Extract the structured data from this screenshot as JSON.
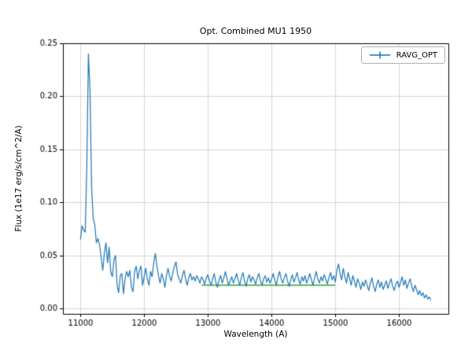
{
  "chart_data": {
    "type": "line",
    "title": "Opt. Combined MU1 1950",
    "xlabel": "Wavelength (A)",
    "ylabel": "Flux (1e17 erg/s/cm^2/A)",
    "xlim": [
      10725,
      16775
    ],
    "ylim": [
      -0.005,
      0.25
    ],
    "grid": true,
    "grid_color": "#cccccc",
    "x_ticks": [
      11000,
      12000,
      13000,
      14000,
      15000,
      16000
    ],
    "x_tick_labels": [
      "11000",
      "12000",
      "13000",
      "14000",
      "15000",
      "16000"
    ],
    "y_ticks": [
      0.0,
      0.05,
      0.1,
      0.15,
      0.2,
      0.25
    ],
    "y_tick_labels": [
      "0.00",
      "0.05",
      "0.10",
      "0.15",
      "0.20",
      "0.25"
    ],
    "legend": {
      "position": "upper right",
      "entries": [
        {
          "label": "RAVG_OPT",
          "color": "#1f77b4",
          "marker": "errorbar"
        }
      ]
    },
    "series": [
      {
        "name": "running-average-line",
        "color": "#2ca02c",
        "line_width": 1.5,
        "x": [
          12900,
          15000
        ],
        "y": [
          0.022,
          0.022
        ]
      },
      {
        "name": "RAVG_OPT",
        "color": "#1f77b4",
        "line_width": 1.2,
        "x_start": 11000,
        "x_step": 25,
        "values": [
          0.065,
          0.078,
          0.074,
          0.072,
          0.135,
          0.24,
          0.205,
          0.115,
          0.085,
          0.079,
          0.062,
          0.066,
          0.06,
          0.048,
          0.036,
          0.052,
          0.062,
          0.043,
          0.058,
          0.035,
          0.03,
          0.046,
          0.05,
          0.022,
          0.015,
          0.031,
          0.033,
          0.014,
          0.028,
          0.035,
          0.03,
          0.036,
          0.02,
          0.016,
          0.035,
          0.04,
          0.028,
          0.036,
          0.04,
          0.022,
          0.03,
          0.038,
          0.028,
          0.022,
          0.035,
          0.03,
          0.043,
          0.052,
          0.04,
          0.031,
          0.024,
          0.033,
          0.028,
          0.02,
          0.031,
          0.038,
          0.03,
          0.026,
          0.034,
          0.04,
          0.044,
          0.032,
          0.028,
          0.024,
          0.031,
          0.036,
          0.028,
          0.022,
          0.029,
          0.033,
          0.027,
          0.03,
          0.026,
          0.031,
          0.028,
          0.024,
          0.03,
          0.027,
          0.023,
          0.029,
          0.032,
          0.026,
          0.022,
          0.028,
          0.033,
          0.025,
          0.02,
          0.027,
          0.031,
          0.024,
          0.029,
          0.035,
          0.028,
          0.022,
          0.026,
          0.03,
          0.024,
          0.028,
          0.033,
          0.027,
          0.022,
          0.029,
          0.034,
          0.026,
          0.021,
          0.028,
          0.032,
          0.025,
          0.03,
          0.027,
          0.023,
          0.029,
          0.033,
          0.026,
          0.022,
          0.028,
          0.031,
          0.025,
          0.029,
          0.024,
          0.028,
          0.033,
          0.027,
          0.022,
          0.03,
          0.035,
          0.028,
          0.024,
          0.029,
          0.033,
          0.026,
          0.021,
          0.027,
          0.032,
          0.025,
          0.029,
          0.034,
          0.027,
          0.023,
          0.03,
          0.026,
          0.031,
          0.024,
          0.028,
          0.033,
          0.027,
          0.022,
          0.029,
          0.035,
          0.028,
          0.024,
          0.03,
          0.026,
          0.032,
          0.028,
          0.023,
          0.029,
          0.034,
          0.027,
          0.031,
          0.025,
          0.036,
          0.042,
          0.033,
          0.027,
          0.038,
          0.03,
          0.024,
          0.034,
          0.028,
          0.022,
          0.031,
          0.026,
          0.02,
          0.028,
          0.024,
          0.018,
          0.025,
          0.021,
          0.027,
          0.022,
          0.017,
          0.024,
          0.029,
          0.021,
          0.016,
          0.023,
          0.027,
          0.02,
          0.025,
          0.018,
          0.022,
          0.026,
          0.019,
          0.024,
          0.028,
          0.021,
          0.017,
          0.023,
          0.026,
          0.02,
          0.025,
          0.03,
          0.022,
          0.027,
          0.019,
          0.024,
          0.028,
          0.021,
          0.016,
          0.022,
          0.018,
          0.013,
          0.017,
          0.012,
          0.015,
          0.01,
          0.013,
          0.009,
          0.011,
          0.008
        ]
      }
    ]
  }
}
